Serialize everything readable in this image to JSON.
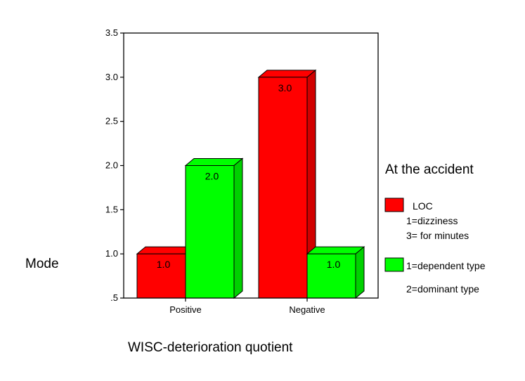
{
  "chart_data": {
    "type": "bar",
    "categories": [
      "Positive",
      "Negative"
    ],
    "series": [
      {
        "name": "LOC",
        "values": [
          1.0,
          3.0
        ],
        "color": "#ff0000",
        "labels": [
          "1.0",
          "3.0"
        ]
      },
      {
        "name": "1=dependent type",
        "values": [
          2.0,
          1.0
        ],
        "color": "#00ff00",
        "labels": [
          "2.0",
          "1.0"
        ]
      }
    ],
    "xlabel": "WISC-deterioration quotient",
    "ylabel": "Mode",
    "ylim": [
      0.5,
      3.5
    ],
    "yticks": [
      ".5",
      "1.0",
      "1.5",
      "2.0",
      "2.5",
      "3.0",
      "3.5"
    ],
    "grid": false,
    "legend": {
      "placement": "right",
      "title": "At the accident",
      "entries": [
        {
          "label": "LOC",
          "sub": [
            "1=dizziness",
            "3= for minutes"
          ],
          "color": "#ff0000"
        },
        {
          "label": "1=dependent type",
          "sub": [
            "2=dominant type"
          ],
          "color": "#00ff00"
        }
      ]
    },
    "style": "3d"
  }
}
